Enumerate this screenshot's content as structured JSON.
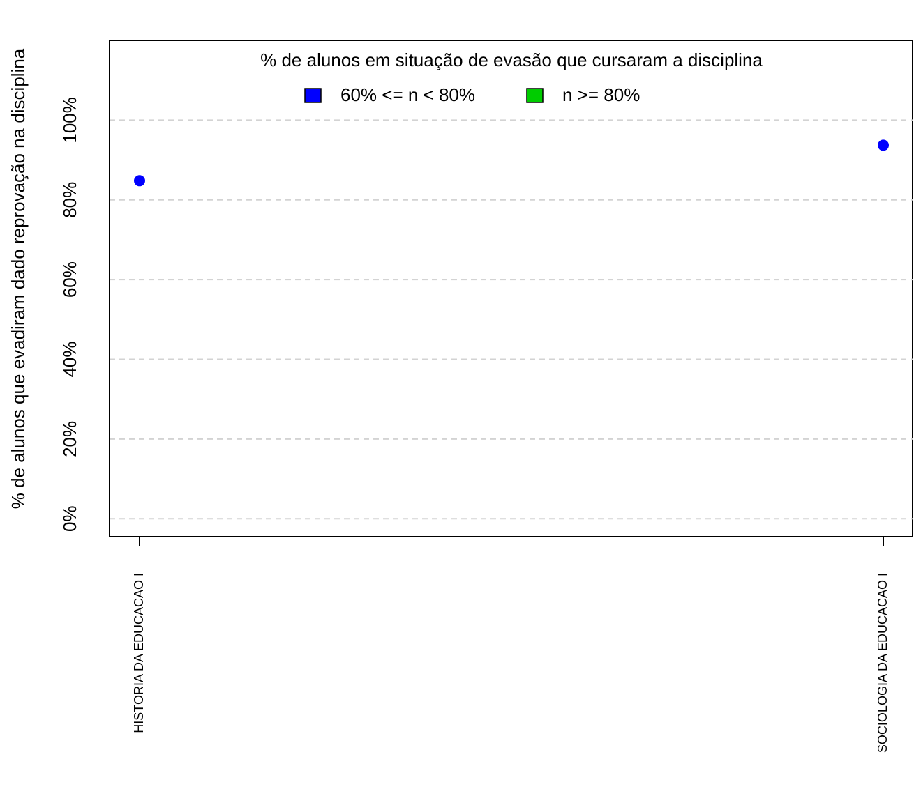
{
  "chart_data": {
    "type": "scatter",
    "ylabel": "% de alunos que evadiram dado reprovação na disciplina",
    "categories": [
      "HISTORIA DA EDUCACAO I",
      "SOCIOLOGIA DA EDUCACAO I"
    ],
    "category_label_color": "#0000ff",
    "legend_title": "% de alunos em situação de evasão que cursaram a disciplina",
    "legend_position": "top",
    "series": [
      {
        "name": "60% <= n < 80%",
        "color": "#0000ff",
        "values": [
          84.8,
          93.7
        ]
      },
      {
        "name": "n >= 80%",
        "color": "#00cc00",
        "values": [
          null,
          null
        ]
      }
    ],
    "ylim": [
      -4.5,
      120
    ],
    "yticks": [
      {
        "value": 0,
        "label": "0%"
      },
      {
        "value": 20,
        "label": "20%"
      },
      {
        "value": 40,
        "label": "40%"
      },
      {
        "value": 60,
        "label": "60%"
      },
      {
        "value": 80,
        "label": "80%"
      },
      {
        "value": 100,
        "label": "100%"
      }
    ],
    "grid": true
  }
}
